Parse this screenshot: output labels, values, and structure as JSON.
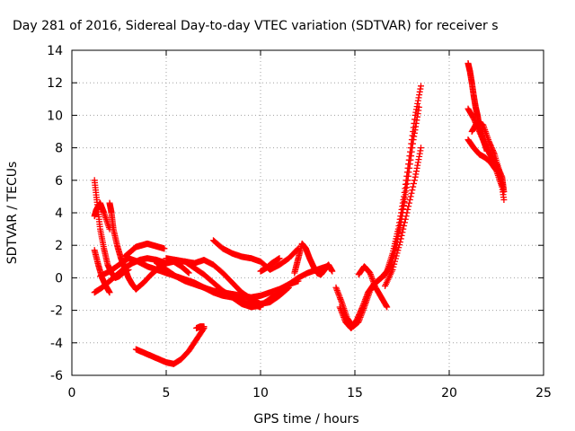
{
  "chart_data": {
    "type": "scatter",
    "title": "Day 281 of 2016, Sidereal Day-to-day VTEC variation (SDTVAR) for receiver s",
    "xlabel": "GPS time / hours",
    "ylabel": "SDTVAR / TECUs",
    "xlim": [
      0,
      25
    ],
    "ylim": [
      -6,
      14
    ],
    "x_ticks": [
      "0",
      "5",
      "10",
      "15",
      "20",
      "25"
    ],
    "y_ticks": [
      "-6",
      "-4",
      "-2",
      "0",
      "2",
      "4",
      "6",
      "8",
      "10",
      "12",
      "14"
    ],
    "grid": true,
    "legend": "none",
    "marker": "plus",
    "color": "#ff0000",
    "series": [
      {
        "x": [
          1.2,
          1.35,
          1.5,
          1.7,
          1.9,
          2.1,
          2.3,
          2.5,
          2.7,
          3.0
        ],
        "y": [
          6.0,
          4.5,
          3.0,
          1.8,
          0.8,
          0.3,
          0.0,
          0.1,
          0.3,
          0.5
        ]
      },
      {
        "x": [
          1.2,
          1.3,
          1.5,
          1.7,
          2.0
        ],
        "y": [
          3.8,
          4.2,
          4.6,
          4.0,
          3.0
        ]
      },
      {
        "x": [
          1.2,
          1.4,
          1.6,
          1.8,
          2.0
        ],
        "y": [
          1.7,
          0.8,
          0.0,
          -0.5,
          -0.9
        ]
      },
      {
        "x": [
          1.2,
          1.6,
          2.0,
          2.4,
          2.8,
          3.2,
          3.6,
          4.0,
          4.5,
          5.0
        ],
        "y": [
          -0.9,
          -0.6,
          -0.2,
          0.2,
          0.6,
          0.9,
          1.1,
          1.2,
          1.1,
          0.9
        ]
      },
      {
        "x": [
          1.5,
          2.0,
          2.5,
          3.0,
          3.5,
          4.0,
          4.5,
          5.0,
          5.5,
          6.0,
          6.5,
          7.0,
          7.5,
          8.0,
          8.5,
          9.0,
          9.5,
          10.0
        ],
        "y": [
          0.1,
          0.4,
          0.8,
          1.2,
          1.0,
          0.7,
          0.5,
          0.3,
          0.1,
          -0.1,
          -0.3,
          -0.6,
          -0.9,
          -1.1,
          -1.2,
          -1.4,
          -1.6,
          -1.8
        ]
      },
      {
        "x": [
          2.0,
          2.1,
          2.2,
          2.4,
          2.6,
          2.8,
          3.0,
          3.2,
          3.4
        ],
        "y": [
          4.6,
          4.0,
          3.0,
          2.0,
          1.2,
          0.6,
          0.0,
          -0.4,
          -0.7
        ]
      },
      {
        "x": [
          2.8,
          3.1,
          3.4,
          3.7,
          4.0,
          4.3,
          4.6,
          4.9
        ],
        "y": [
          1.3,
          1.6,
          1.9,
          2.0,
          2.1,
          2.0,
          1.9,
          1.8
        ]
      },
      {
        "x": [
          3.4,
          3.8,
          4.2,
          4.6,
          5.0,
          5.4,
          5.8,
          6.2
        ],
        "y": [
          -0.7,
          -0.3,
          0.2,
          0.6,
          0.9,
          1.0,
          0.7,
          0.3
        ]
      },
      {
        "x": [
          3.4,
          3.8,
          4.2,
          4.6,
          5.0,
          5.4,
          5.8,
          6.2,
          6.6,
          7.0
        ],
        "y": [
          -4.4,
          -4.6,
          -4.8,
          -5.0,
          -5.2,
          -5.3,
          -5.0,
          -4.5,
          -3.8,
          -3.1
        ]
      },
      {
        "x": [
          6.6,
          6.8,
          7.0
        ],
        "y": [
          -3.1,
          -3.0,
          -3.0
        ]
      },
      {
        "x": [
          4.5,
          5.0,
          5.5,
          6.0,
          6.5,
          7.0,
          7.5,
          8.0,
          8.5,
          9.0,
          9.5,
          10.0,
          10.5,
          11.0,
          11.5,
          12.0
        ],
        "y": [
          0.9,
          0.5,
          0.1,
          -0.2,
          -0.4,
          -0.6,
          -0.8,
          -0.9,
          -1.0,
          -1.1,
          -1.2,
          -1.1,
          -0.9,
          -0.7,
          -0.4,
          -0.2
        ]
      },
      {
        "x": [
          5.0,
          5.5,
          6.0,
          6.5,
          7.0,
          7.5,
          8.0,
          8.5,
          9.0,
          9.5,
          10.0,
          10.5,
          11.0,
          11.5
        ],
        "y": [
          1.2,
          1.1,
          1.0,
          0.9,
          1.1,
          0.8,
          0.3,
          -0.3,
          -0.9,
          -1.3,
          -1.6,
          -1.5,
          -1.1,
          -0.6
        ]
      },
      {
        "x": [
          6.0,
          6.5,
          7.0,
          7.5,
          8.0,
          8.5,
          9.0,
          9.5,
          10.0,
          10.5,
          11.0
        ],
        "y": [
          1.0,
          0.6,
          0.2,
          -0.3,
          -0.8,
          -1.2,
          -1.6,
          -1.8,
          -1.7,
          -1.3,
          -0.9
        ]
      },
      {
        "x": [
          7.5,
          8.0,
          8.5,
          9.0,
          9.5,
          10.0,
          10.5,
          11.0,
          11.5,
          12.0
        ],
        "y": [
          2.3,
          1.8,
          1.5,
          1.3,
          1.2,
          1.0,
          0.5,
          0.8,
          1.2,
          1.8
        ]
      },
      {
        "x": [
          10.0,
          10.3,
          10.6,
          11.0
        ],
        "y": [
          0.4,
          0.6,
          0.9,
          1.2
        ]
      },
      {
        "x": [
          11.8,
          12.0,
          12.2,
          12.4,
          12.6,
          12.8,
          13.0,
          13.2,
          13.4,
          13.6,
          13.8
        ],
        "y": [
          0.3,
          1.2,
          2.1,
          1.8,
          1.2,
          0.7,
          0.3,
          0.2,
          0.5,
          0.8,
          0.4
        ]
      },
      {
        "x": [
          11.5,
          12.0,
          12.5,
          13.0,
          13.5
        ],
        "y": [
          -0.4,
          0.0,
          0.3,
          0.5,
          0.7
        ]
      },
      {
        "x": [
          14.0,
          14.3,
          14.6,
          14.9,
          15.2,
          15.5,
          15.8,
          16.1,
          16.4,
          16.7,
          17.0,
          17.3,
          17.6,
          17.9,
          18.2,
          18.5
        ],
        "y": [
          -0.6,
          -1.5,
          -2.5,
          -3.0,
          -2.7,
          -1.8,
          -0.8,
          -0.3,
          0.0,
          0.4,
          1.5,
          3.0,
          5.0,
          7.5,
          10.0,
          11.8
        ]
      },
      {
        "x": [
          14.2,
          14.5,
          14.8,
          15.1,
          15.4,
          15.7,
          16.0,
          16.3,
          16.6,
          16.9,
          17.2,
          17.5,
          17.8,
          18.1,
          18.4
        ],
        "y": [
          -1.8,
          -2.7,
          -3.1,
          -2.6,
          -1.8,
          -0.9,
          -0.4,
          -0.1,
          0.2,
          0.8,
          2.0,
          3.8,
          6.0,
          8.5,
          10.5
        ]
      },
      {
        "x": [
          15.2,
          15.5,
          15.8,
          16.1,
          16.4,
          16.7
        ],
        "y": [
          0.2,
          0.7,
          0.3,
          -0.6,
          -1.2,
          -1.8
        ]
      },
      {
        "x": [
          16.6,
          17.0,
          17.4,
          17.8,
          18.2,
          18.5
        ],
        "y": [
          -0.5,
          0.5,
          2.2,
          4.2,
          6.2,
          8.0
        ]
      },
      {
        "x": [
          21.0,
          21.1,
          21.2,
          21.3,
          21.4,
          21.5,
          21.6,
          21.8,
          22.0
        ],
        "y": [
          13.2,
          12.7,
          12.0,
          11.2,
          10.5,
          10.0,
          9.3,
          8.5,
          7.8
        ]
      },
      {
        "x": [
          21.0,
          21.3,
          21.6,
          21.9,
          22.2,
          22.5,
          22.8,
          22.9
        ],
        "y": [
          10.4,
          9.8,
          9.0,
          8.2,
          7.5,
          7.0,
          6.2,
          5.3
        ]
      },
      {
        "x": [
          21.0,
          21.3,
          21.6,
          21.9,
          22.2,
          22.5,
          22.8
        ],
        "y": [
          8.5,
          8.0,
          7.6,
          7.4,
          7.1,
          6.6,
          5.6
        ]
      },
      {
        "x": [
          21.2,
          21.5,
          21.8,
          22.1,
          22.4,
          22.7,
          22.9
        ],
        "y": [
          9.0,
          9.6,
          9.4,
          8.4,
          7.6,
          6.4,
          4.8
        ]
      }
    ]
  }
}
